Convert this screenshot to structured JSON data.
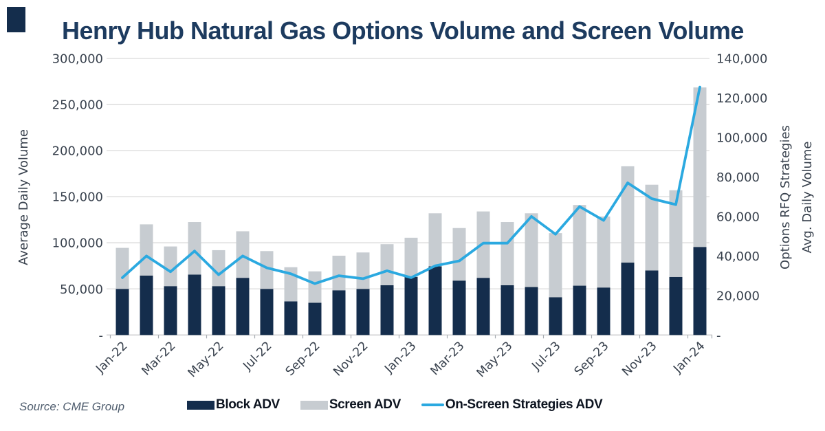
{
  "title": {
    "text": "Henry Hub Natural Gas Options Volume and Screen Volume",
    "color": "#1d3b5f"
  },
  "source": {
    "text": "Source: CME Group"
  },
  "corner_mark_color": "#142d4c",
  "colors": {
    "block": "#142d4c",
    "screen": "#c7ccd1",
    "line": "#2ba9e0",
    "grid": "#d9d9d9",
    "axis_line": "#c6c8ca",
    "tick": "#a6abb0",
    "axis_text": "#39424e"
  },
  "legend": [
    {
      "label": "Block ADV",
      "type": "swatch",
      "color": "#142d4c"
    },
    {
      "label": "Screen ADV",
      "type": "swatch",
      "color": "#c7ccd1"
    },
    {
      "label": "On-Screen Strategies ADV",
      "type": "line",
      "color": "#2ba9e0"
    }
  ],
  "chart_data": {
    "type": "bar",
    "stacked": true,
    "grid": true,
    "title": "Henry Hub Natural Gas Options Volume and Screen Volume",
    "categories": [
      "Jan-22",
      "Feb-22",
      "Mar-22",
      "Apr-22",
      "May-22",
      "Jun-22",
      "Jul-22",
      "Aug-22",
      "Sep-22",
      "Oct-22",
      "Nov-22",
      "Dec-22",
      "Jan-23",
      "Feb-23",
      "Mar-23",
      "Apr-23",
      "May-23",
      "Jun-23",
      "Jul-23",
      "Aug-23",
      "Sep-23",
      "Oct-23",
      "Nov-23",
      "Dec-23",
      "Jan-24"
    ],
    "x_tick_step": 2,
    "x_tick_labels": [
      "Jan-22",
      "Mar-22",
      "May-22",
      "Jul-22",
      "Sep-22",
      "Nov-22",
      "Jan-23",
      "Mar-23",
      "May-23",
      "Jul-23",
      "Sep-23",
      "Nov-23",
      "Jan-24"
    ],
    "series": [
      {
        "name": "Block ADV",
        "kind": "bar",
        "axis": "left",
        "color": "#142d4c",
        "values": [
          50000,
          64500,
          53000,
          65500,
          53000,
          62000,
          50000,
          36500,
          35000,
          48500,
          50000,
          54000,
          63000,
          74500,
          59000,
          62000,
          54000,
          52000,
          41000,
          53500,
          51500,
          78500,
          70000,
          63000,
          95500
        ]
      },
      {
        "name": "Screen ADV",
        "kind": "bar",
        "axis": "left",
        "color": "#c7ccd1",
        "values": [
          44500,
          55500,
          43000,
          57000,
          39000,
          50500,
          41000,
          37000,
          34000,
          37500,
          39500,
          44500,
          42500,
          57500,
          57000,
          72000,
          68500,
          80000,
          69500,
          87500,
          77000,
          104500,
          93000,
          94000,
          173000
        ]
      },
      {
        "name": "On-Screen Strategies ADV",
        "kind": "line",
        "axis": "right",
        "color": "#2ba9e0",
        "values": [
          29000,
          40000,
          32000,
          42500,
          30500,
          40000,
          34000,
          31000,
          26000,
          30000,
          28500,
          32500,
          29000,
          35000,
          37500,
          46500,
          46500,
          60000,
          51000,
          65000,
          58000,
          77000,
          69000,
          66000,
          125500
        ]
      }
    ],
    "left_axis": {
      "title": "Average Daily Volume",
      "min": 0,
      "max": 300000,
      "step": 50000,
      "tick_labels": [
        "-",
        "50,000",
        "100,000",
        "150,000",
        "200,000",
        "250,000",
        "300,000"
      ]
    },
    "right_axis": {
      "title_line1": "Options RFQ Strategies",
      "title_line2": "Avg.  Daily Volume",
      "min": 0,
      "max": 140000,
      "step": 20000,
      "tick_labels": [
        "-",
        "20,000",
        "40,000",
        "60,000",
        "80,000",
        "100,000",
        "120,000",
        "140,000"
      ]
    },
    "legend_position": "bottom"
  }
}
